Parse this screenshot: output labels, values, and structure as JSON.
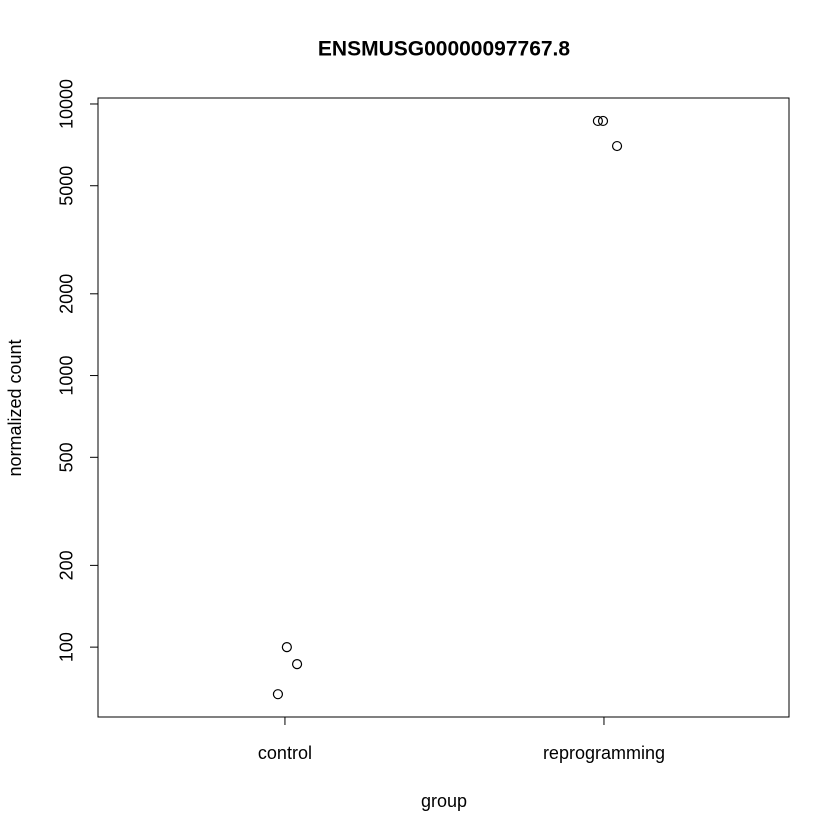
{
  "chart_data": {
    "type": "scatter",
    "title": "ENSMUSG00000097767.8",
    "x_label": "group",
    "y_label": "normalized count",
    "x": [
      1.006,
      1.038,
      0.978,
      1.981,
      1.997,
      2.041
    ],
    "values": [
      100,
      86.6,
      67.1,
      8660,
      8660,
      7000
    ],
    "color": "#000000",
    "xlim": [
      0.414,
      2.58
    ],
    "xticks": [
      {
        "value": 1,
        "label": "control"
      },
      {
        "value": 2,
        "label": "reprogramming"
      }
    ],
    "ylim": [
      55.3,
      10520
    ],
    "yticks": [
      100,
      200,
      500,
      1000,
      2000,
      5000,
      10000
    ],
    "log_y": true,
    "grid": false
  }
}
